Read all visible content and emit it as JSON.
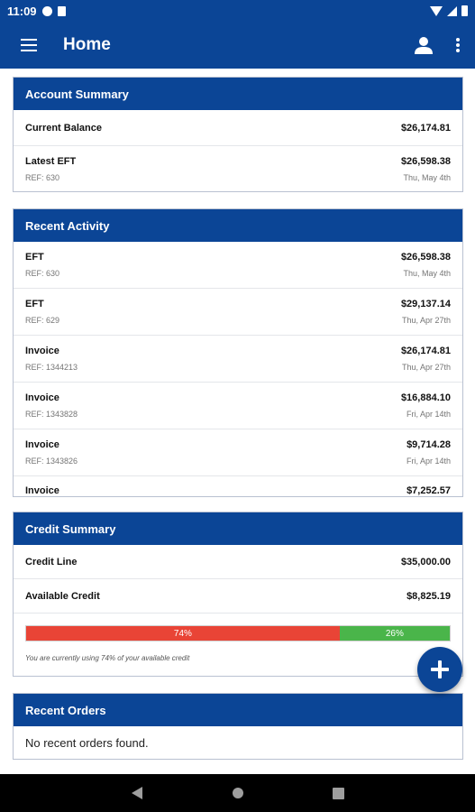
{
  "status_bar": {
    "time": "11:09",
    "icons": [
      "g-circle-icon",
      "doc-icon",
      "wifi-icon",
      "signal-icon",
      "battery-icon"
    ]
  },
  "app_bar": {
    "title": "Home",
    "icons": {
      "menu": "hamburger-menu-icon",
      "account": "account-icon",
      "overflow": "more-vert-icon"
    }
  },
  "account_summary": {
    "header": "Account Summary",
    "current_balance": {
      "label": "Current Balance",
      "amount": "$26,174.81"
    },
    "latest_eft": {
      "label": "Latest EFT",
      "ref": "REF: 630",
      "amount": "$26,598.38",
      "date": "Thu, May 4th"
    }
  },
  "recent_activity": {
    "header": "Recent Activity",
    "items": [
      {
        "type": "EFT",
        "ref": "REF: 630",
        "amount": "$26,598.38",
        "date": "Thu, May 4th"
      },
      {
        "type": "EFT",
        "ref": "REF: 629",
        "amount": "$29,137.14",
        "date": "Thu, Apr 27th"
      },
      {
        "type": "Invoice",
        "ref": "REF: 1344213",
        "amount": "$26,174.81",
        "date": "Thu, Apr 27th"
      },
      {
        "type": "Invoice",
        "ref": "REF: 1343828",
        "amount": "$16,884.10",
        "date": "Fri, Apr 14th"
      },
      {
        "type": "Invoice",
        "ref": "REF: 1343826",
        "amount": "$9,714.28",
        "date": "Fri, Apr 14th"
      },
      {
        "type": "Invoice",
        "ref": "",
        "amount": "$7,252.57",
        "date": ""
      }
    ]
  },
  "credit_summary": {
    "header": "Credit Summary",
    "credit_line": {
      "label": "Credit Line",
      "amount": "$35,000.00"
    },
    "available_credit": {
      "label": "Available Credit",
      "amount": "$8,825.19"
    },
    "used_percent_label": "74%",
    "available_percent_label": "26%",
    "used_fraction": 0.74,
    "note": "You are currently using 74% of your available credit",
    "colors": {
      "used": "#e94436",
      "available": "#4ab54a"
    }
  },
  "recent_orders": {
    "header": "Recent Orders",
    "empty_text": "No recent orders found."
  },
  "fab": {
    "icon": "plus-icon"
  },
  "nav_bar": {
    "icons": [
      "back-icon",
      "home-icon",
      "recents-icon"
    ]
  },
  "colors": {
    "primary": "#0b4596"
  }
}
